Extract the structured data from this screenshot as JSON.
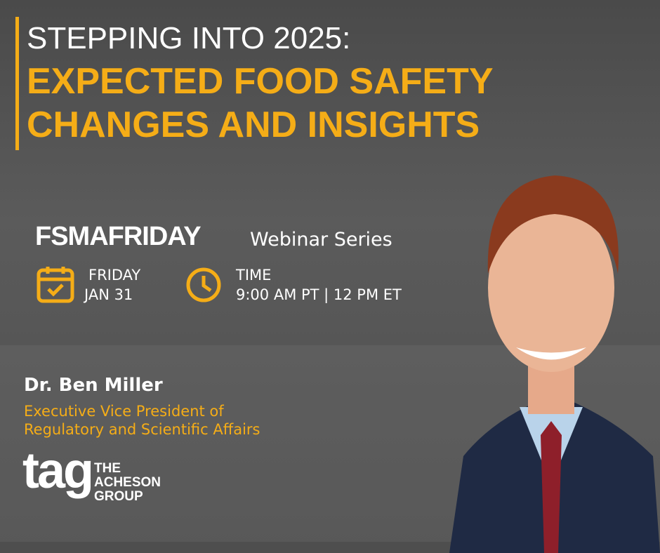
{
  "header": {
    "line1": "STEPPING INTO 2025:",
    "line2": "EXPECTED FOOD SAFETY",
    "line3": "CHANGES AND INSIGHTS"
  },
  "series": {
    "brand": "FSMAFRIDAY",
    "label": "Webinar Series"
  },
  "date": {
    "label": "FRIDAY",
    "value": "JAN 31"
  },
  "time": {
    "label": "TIME",
    "value": "9:00 AM PT | 12 PM ET"
  },
  "speaker": {
    "name": "Dr. Ben Miller",
    "title_lines": [
      "Executive Vice President of",
      "Regulatory and Scientific Affairs"
    ]
  },
  "logo": {
    "mark": "tag",
    "lines": [
      "THE",
      "ACHESON",
      "GROUP"
    ]
  }
}
